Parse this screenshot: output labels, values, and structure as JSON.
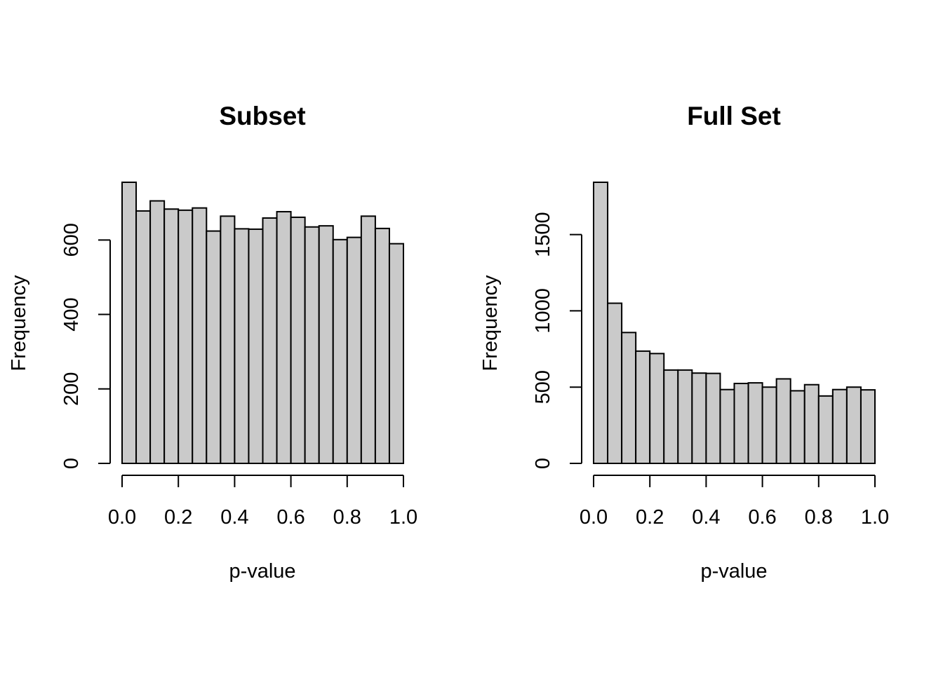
{
  "chart_data": [
    {
      "type": "bar",
      "title": "Subset",
      "xlabel": "p-value",
      "ylabel": "Frequency",
      "bin_edges": [
        0,
        0.05,
        0.1,
        0.15,
        0.2,
        0.25,
        0.3,
        0.35,
        0.4,
        0.45,
        0.5,
        0.55,
        0.6,
        0.65,
        0.7,
        0.75,
        0.8,
        0.85,
        0.9,
        0.95,
        1.0
      ],
      "values": [
        755,
        678,
        705,
        683,
        680,
        686,
        624,
        664,
        630,
        629,
        659,
        676,
        661,
        635,
        638,
        601,
        607,
        664,
        631,
        590
      ],
      "xlim": [
        0,
        1
      ],
      "ylim": [
        0,
        755
      ],
      "xticks": [
        0,
        0.2,
        0.4,
        0.6,
        0.8,
        1.0
      ],
      "xtick_labels": [
        "0.0",
        "0.2",
        "0.4",
        "0.6",
        "0.8",
        "1.0"
      ],
      "yticks": [
        0,
        200,
        400,
        600
      ],
      "ytick_labels": [
        "0",
        "200",
        "400",
        "600"
      ],
      "bar_color": "#cacaca",
      "grid": false
    },
    {
      "type": "bar",
      "title": "Full Set",
      "xlabel": "p-value",
      "ylabel": "Frequency",
      "bin_edges": [
        0,
        0.05,
        0.1,
        0.15,
        0.2,
        0.25,
        0.3,
        0.35,
        0.4,
        0.45,
        0.5,
        0.55,
        0.6,
        0.65,
        0.7,
        0.75,
        0.8,
        0.85,
        0.9,
        0.95,
        1.0
      ],
      "values": [
        1843,
        1050,
        858,
        736,
        720,
        612,
        612,
        592,
        590,
        484,
        524,
        528,
        500,
        554,
        476,
        516,
        442,
        484,
        500,
        482
      ],
      "xlim": [
        0,
        1
      ],
      "ylim": [
        0,
        1843
      ],
      "xticks": [
        0,
        0.2,
        0.4,
        0.6,
        0.8,
        1.0
      ],
      "xtick_labels": [
        "0.0",
        "0.2",
        "0.4",
        "0.6",
        "0.8",
        "1.0"
      ],
      "yticks": [
        0,
        500,
        1000,
        1500
      ],
      "ytick_labels": [
        "0",
        "500",
        "1000",
        "1500"
      ],
      "bar_color": "#cacaca",
      "grid": false
    }
  ]
}
